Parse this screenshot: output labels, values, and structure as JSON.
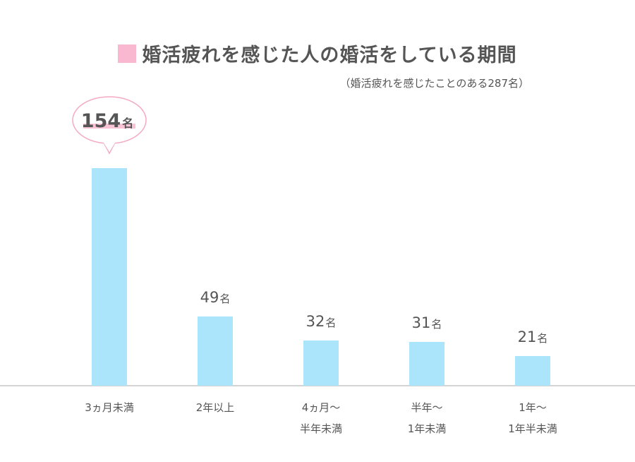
{
  "chart_data": {
    "type": "bar",
    "title": "婚活疲れを感じた人の婚活をしている期間",
    "subtitle": "（婚活疲れを感じたことのある287名）",
    "categories": [
      [
        "3ヵ月未満"
      ],
      [
        "2年以上"
      ],
      [
        "4ヵ月〜",
        "半年未満"
      ],
      [
        "半年〜",
        "1年未満"
      ],
      [
        "1年〜",
        "1年半未満"
      ]
    ],
    "values": [
      154,
      49,
      32,
      31,
      21
    ],
    "value_labels": [
      "154",
      "49",
      "32",
      "31",
      "21"
    ],
    "unit": "名",
    "ylim": [
      0,
      154
    ],
    "highlight_index": 0,
    "colors": {
      "bar": "#abe5fb",
      "legend": "#f9b8cf",
      "bubble_border": "#f4a9c4",
      "highlight_underline": "#f9c3d6",
      "axis": "#aaaaaa",
      "text": "#555555"
    }
  }
}
